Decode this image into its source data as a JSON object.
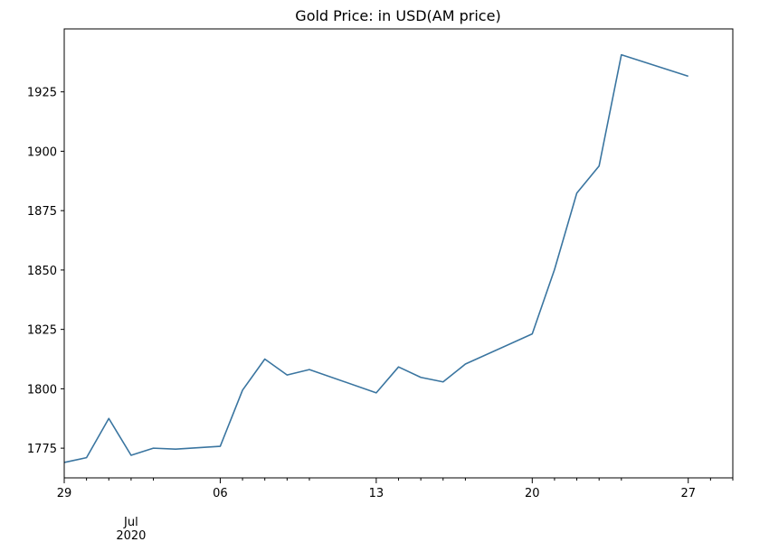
{
  "chart_data": {
    "type": "line",
    "title": "Gold Price: in USD(AM price)",
    "xlabel": "",
    "ylabel": "",
    "x_start": "2020-06-29",
    "x_end": "2020-07-29",
    "xlim": [
      "2020-06-29",
      "2020-07-29"
    ],
    "ylim": [
      1762.5,
      1951.5
    ],
    "x_major_ticks": [
      {
        "date": "2020-06-29",
        "label": "29"
      },
      {
        "date": "2020-07-06",
        "label": "06"
      },
      {
        "date": "2020-07-13",
        "label": "13"
      },
      {
        "date": "2020-07-20",
        "label": "20"
      },
      {
        "date": "2020-07-27",
        "label": "27"
      }
    ],
    "x_minor_ticks": [
      "2020-06-30",
      "2020-07-01",
      "2020-07-02",
      "2020-07-03",
      "2020-07-07",
      "2020-07-08",
      "2020-07-09",
      "2020-07-10",
      "2020-07-14",
      "2020-07-15",
      "2020-07-16",
      "2020-07-17",
      "2020-07-21",
      "2020-07-22",
      "2020-07-23",
      "2020-07-24",
      "2020-07-28",
      "2020-07-29"
    ],
    "x_secondary_label": {
      "date": "2020-07-02",
      "line1": "Jul",
      "line2": "2020"
    },
    "y_ticks": [
      1775,
      1800,
      1825,
      1850,
      1875,
      1900,
      1925
    ],
    "grid": false,
    "legend": "none",
    "series": [
      {
        "color": "#3a75a0",
        "points": [
          {
            "x": "2020-06-29",
            "y": 1769
          },
          {
            "x": "2020-06-30",
            "y": 1771
          },
          {
            "x": "2020-07-01",
            "y": 1787.5
          },
          {
            "x": "2020-07-02",
            "y": 1772
          },
          {
            "x": "2020-07-03",
            "y": 1775
          },
          {
            "x": "2020-07-04",
            "y": 1774.6
          },
          {
            "x": "2020-07-06",
            "y": 1775.8
          },
          {
            "x": "2020-07-07",
            "y": 1799.4
          },
          {
            "x": "2020-07-08",
            "y": 1812.5
          },
          {
            "x": "2020-07-09",
            "y": 1805.8
          },
          {
            "x": "2020-07-10",
            "y": 1808.1
          },
          {
            "x": "2020-07-13",
            "y": 1798.3
          },
          {
            "x": "2020-07-14",
            "y": 1809.2
          },
          {
            "x": "2020-07-15",
            "y": 1804.8
          },
          {
            "x": "2020-07-16",
            "y": 1802.9
          },
          {
            "x": "2020-07-17",
            "y": 1810.4
          },
          {
            "x": "2020-07-20",
            "y": 1823.1
          },
          {
            "x": "2020-07-21",
            "y": 1850.2
          },
          {
            "x": "2020-07-22",
            "y": 1882.4
          },
          {
            "x": "2020-07-23",
            "y": 1893.8
          },
          {
            "x": "2020-07-24",
            "y": 1940.6
          },
          {
            "x": "2020-07-27",
            "y": 1931.6
          }
        ]
      }
    ]
  }
}
